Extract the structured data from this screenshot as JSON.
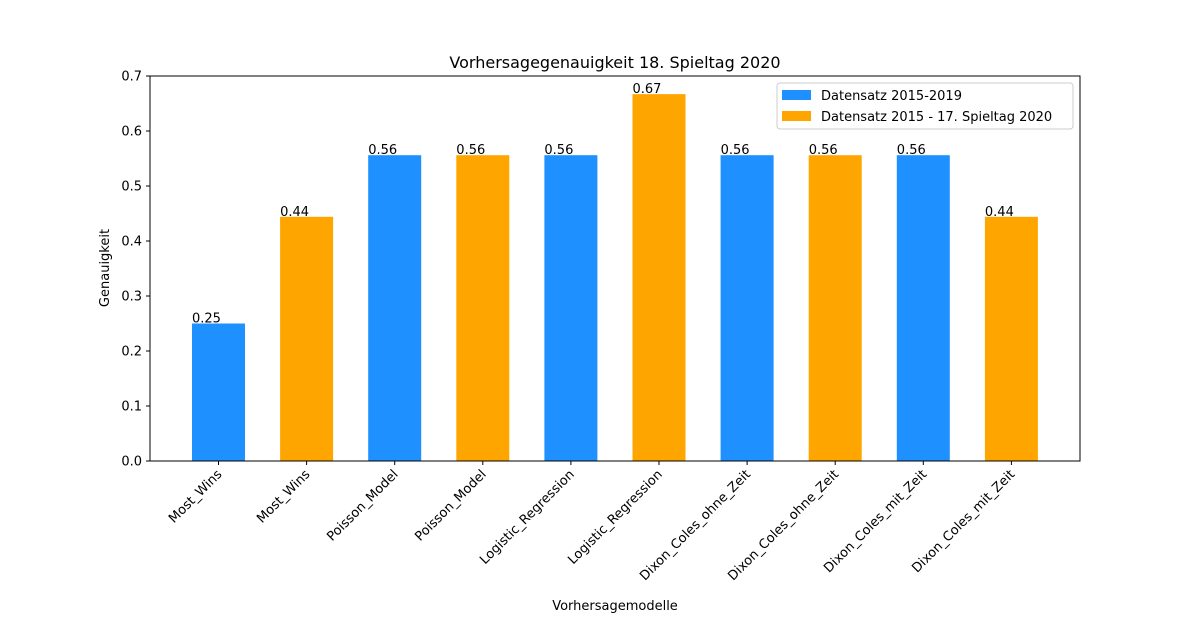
{
  "chart_data": {
    "type": "bar",
    "title": "Vorhersagegenauigkeit 18. Spieltag 2020",
    "xlabel": "Vorhersagemodelle",
    "ylabel": "Genauigkeit",
    "ylim": [
      0,
      0.7
    ],
    "yticks": [
      "0.0",
      "0.1",
      "0.2",
      "0.3",
      "0.4",
      "0.5",
      "0.6",
      "0.7"
    ],
    "grid": false,
    "legend_position": "top-right",
    "categories": [
      "Most_Wins",
      "Most_Wins",
      "Poisson_Model",
      "Poisson_Model",
      "Logistic_Regression",
      "Logistic_Regression",
      "Dixon_Coles_ohne_Zeit",
      "Dixon_Coles_ohne_Zeit",
      "Dixon_Coles_mit_Zeit",
      "Dixon_Coles_mit_Zeit"
    ],
    "values": [
      0.25,
      0.444,
      0.556,
      0.556,
      0.556,
      0.667,
      0.556,
      0.556,
      0.556,
      0.444
    ],
    "value_labels": [
      "0.25",
      "0.44",
      "0.56",
      "0.56",
      "0.56",
      "0.67",
      "0.56",
      "0.56",
      "0.56",
      "0.44"
    ],
    "bar_series": [
      0,
      1,
      0,
      1,
      0,
      1,
      0,
      1,
      0,
      1
    ],
    "series": [
      {
        "name": "Datensatz 2015-2019",
        "color": "#1e90ff"
      },
      {
        "name": "Datensatz 2015 - 17. Spieltag 2020",
        "color": "#ffa500"
      }
    ]
  }
}
